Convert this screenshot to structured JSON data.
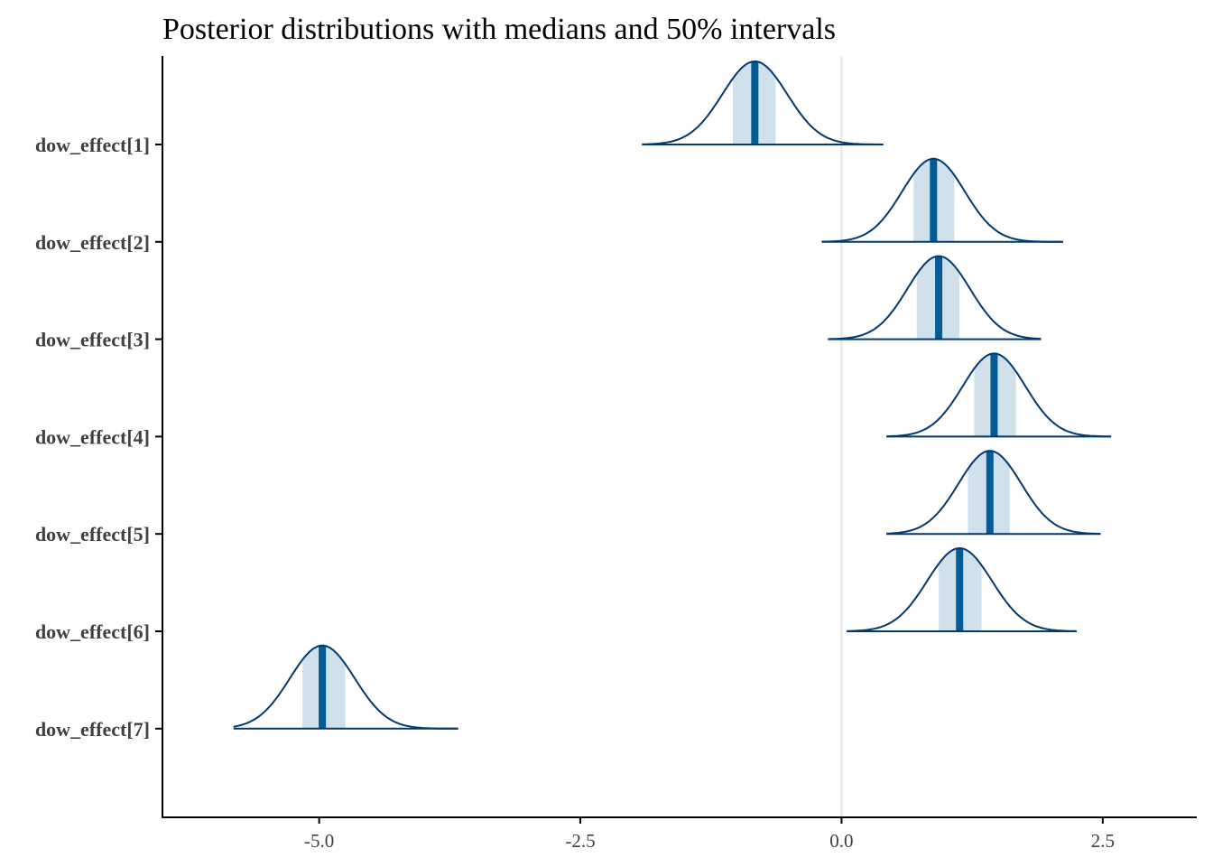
{
  "chart_data": {
    "type": "ridgeline",
    "title": "Posterior distributions with medians and 50% intervals",
    "xlim": [
      -6.5,
      3.4
    ],
    "x_ticks": [
      -5.0,
      -2.5,
      0.0,
      2.5
    ],
    "x_tick_labels": [
      "-5.0",
      "-2.5",
      "0.0",
      "2.5"
    ],
    "reference_line_x": 0.0,
    "colors": {
      "outline": "#03396c",
      "interval_fill": "#d1e1ec",
      "median": "#005b96",
      "reference": "#e5e5e5",
      "axis": "#000000"
    },
    "series": [
      {
        "label": "dow_effect[1]",
        "median": -0.83,
        "q25": -1.04,
        "q75": -0.63,
        "low": -1.91,
        "high": 0.4,
        "sd": 0.31
      },
      {
        "label": "dow_effect[2]",
        "median": 0.88,
        "q25": 0.69,
        "q75": 1.08,
        "low": -0.19,
        "high": 2.12,
        "sd": 0.3
      },
      {
        "label": "dow_effect[3]",
        "median": 0.93,
        "q25": 0.72,
        "q75": 1.13,
        "low": -0.13,
        "high": 1.91,
        "sd": 0.3
      },
      {
        "label": "dow_effect[4]",
        "median": 1.46,
        "q25": 1.27,
        "q75": 1.67,
        "low": 0.43,
        "high": 2.58,
        "sd": 0.3
      },
      {
        "label": "dow_effect[5]",
        "median": 1.42,
        "q25": 1.21,
        "q75": 1.61,
        "low": 0.43,
        "high": 2.48,
        "sd": 0.3
      },
      {
        "label": "dow_effect[6]",
        "median": 1.13,
        "q25": 0.93,
        "q75": 1.34,
        "low": 0.05,
        "high": 2.25,
        "sd": 0.31
      },
      {
        "label": "dow_effect[7]",
        "median": -4.97,
        "q25": -5.16,
        "q75": -4.75,
        "low": -5.82,
        "high": -3.67,
        "sd": 0.31
      }
    ]
  }
}
